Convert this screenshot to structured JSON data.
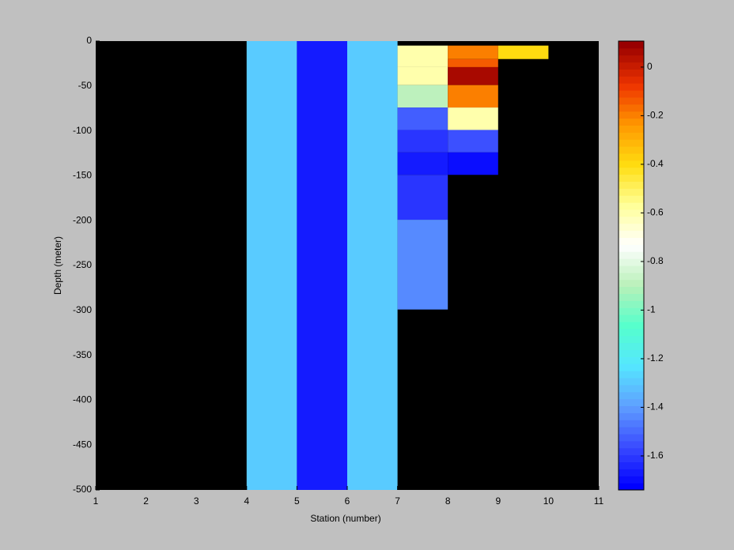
{
  "chart_data": {
    "type": "heatmap",
    "xlabel": "Station (number)",
    "ylabel": "Depth (meter)",
    "xlim": [
      1,
      11
    ],
    "xticks": [
      1,
      2,
      3,
      4,
      5,
      6,
      7,
      8,
      9,
      10,
      11
    ],
    "ylim": [
      -500,
      0
    ],
    "yticks": [
      0,
      -50,
      -100,
      -150,
      -200,
      -250,
      -300,
      -350,
      -400,
      -450,
      -500
    ],
    "background": "#000000",
    "colormap": [
      "#0000ff",
      "#3a4cff",
      "#5f9fff",
      "#55e6ff",
      "#55ffcc",
      "#b8f0b8",
      "#ffffff",
      "#ffff99",
      "#ffdd11",
      "#ff9900",
      "#ee3300",
      "#990000"
    ],
    "clim": [
      -1.74,
      0.107
    ],
    "cticks": [
      0,
      -0.2,
      -0.4,
      -0.6,
      -0.8,
      -1,
      -1.2,
      -1.4,
      -1.6
    ],
    "cells": [
      {
        "x": [
          4,
          5
        ],
        "y": [
          0,
          -500
        ],
        "value": -1.3
      },
      {
        "x": [
          5,
          6
        ],
        "y": [
          0,
          -500
        ],
        "value": -1.68
      },
      {
        "x": [
          6,
          7
        ],
        "y": [
          0,
          -500
        ],
        "value": -1.3
      },
      {
        "x": [
          7,
          8
        ],
        "y": [
          -5,
          -29
        ],
        "value": -0.6
      },
      {
        "x": [
          7,
          8
        ],
        "y": [
          -29,
          -49
        ],
        "value": -0.6
      },
      {
        "x": [
          7,
          8
        ],
        "y": [
          -49,
          -74
        ],
        "value": -0.88
      },
      {
        "x": [
          7,
          8
        ],
        "y": [
          -74,
          -99
        ],
        "value": -1.52
      },
      {
        "x": [
          7,
          8
        ],
        "y": [
          -99,
          -124
        ],
        "value": -1.62
      },
      {
        "x": [
          7,
          8
        ],
        "y": [
          -124,
          -149
        ],
        "value": -1.66
      },
      {
        "x": [
          7,
          8
        ],
        "y": [
          -149,
          -199
        ],
        "value": -1.6
      },
      {
        "x": [
          7,
          8
        ],
        "y": [
          -199,
          -299
        ],
        "value": -1.44
      },
      {
        "x": [
          8,
          9
        ],
        "y": [
          -5,
          -20
        ],
        "value": -0.2
      },
      {
        "x": [
          8,
          9
        ],
        "y": [
          -20,
          -29
        ],
        "value": -0.14
      },
      {
        "x": [
          8,
          9
        ],
        "y": [
          -29,
          -49
        ],
        "value": 0.06
      },
      {
        "x": [
          8,
          9
        ],
        "y": [
          -49,
          -74
        ],
        "value": -0.2
      },
      {
        "x": [
          8,
          9
        ],
        "y": [
          -74,
          -99
        ],
        "value": -0.6
      },
      {
        "x": [
          8,
          9
        ],
        "y": [
          -99,
          -124
        ],
        "value": -1.54
      },
      {
        "x": [
          8,
          9
        ],
        "y": [
          -124,
          -149
        ],
        "value": -1.7
      },
      {
        "x": [
          9,
          10
        ],
        "y": [
          -5,
          -20
        ],
        "value": -0.4
      }
    ]
  }
}
